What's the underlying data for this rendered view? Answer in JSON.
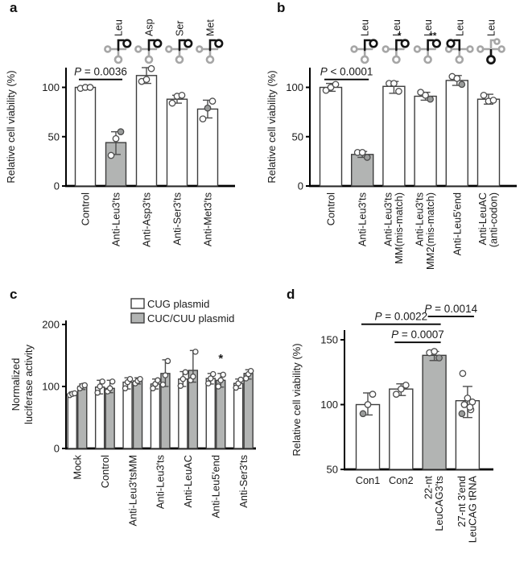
{
  "figure": {
    "panels": [
      {
        "letter": "a"
      },
      {
        "letter": "b"
      },
      {
        "letter": "c"
      },
      {
        "letter": "d"
      }
    ]
  },
  "colors": {
    "bar_white": "#ffffff",
    "bar_gray": "#b2b4b3",
    "bar_outline": "#3d3d3d",
    "error_stroke": "#4d4d4d",
    "icon_gray": "#a6a6a6",
    "axis": "#000000",
    "text": "#1a1a1a"
  },
  "chart_data": [
    {
      "panel": "a",
      "type": "bar",
      "ylabel": "Relative cell viability (%)",
      "ymin": 0,
      "ymax": 120,
      "yticks": [
        0,
        50,
        100
      ],
      "grid": false,
      "rotate_labels": true,
      "categories": [
        [
          "Control"
        ],
        [
          "Anti-Leu3′ts"
        ],
        [
          "Anti-Asp3′ts"
        ],
        [
          "Anti-Ser3′ts"
        ],
        [
          "Anti-Met3′ts"
        ]
      ],
      "series": [
        {
          "name": "Relative cell viability",
          "values": [
            100,
            44,
            112,
            88,
            78
          ],
          "fills": [
            "white",
            "gray",
            "white",
            "white",
            "white"
          ],
          "errors": [
            [
              99,
              101
            ],
            [
              32,
              55
            ],
            [
              104,
              120
            ],
            [
              84,
              92
            ],
            [
              69,
              87
            ]
          ],
          "points": [
            [
              99,
              100,
              100
            ],
            [
              31,
              48,
              {
                "v": 55,
                "f": 1
              }
            ],
            [
              106,
              108,
              119
            ],
            [
              84,
              91,
              92
            ],
            [
              68,
              {
                "v": 79,
                "f": 1
              },
              86
            ]
          ]
        }
      ],
      "sig": [
        {
          "text": "P = 0.0036",
          "from": 0,
          "to": 1,
          "y": 108
        }
      ],
      "icons": [
        {
          "label": "Leu",
          "variant": "3end",
          "cat": 1
        },
        {
          "label": "Asp",
          "variant": "3end",
          "cat": 2
        },
        {
          "label": "Ser",
          "variant": "3end",
          "cat": 3
        },
        {
          "label": "Met",
          "variant": "3end",
          "cat": 4
        }
      ]
    },
    {
      "panel": "b",
      "type": "bar",
      "ylabel": "Relative cell viability (%)",
      "ymin": 0,
      "ymax": 120,
      "yticks": [
        0,
        50,
        100
      ],
      "grid": false,
      "rotate_labels": true,
      "categories": [
        [
          "Control"
        ],
        [
          "Anti-Leu3′ts"
        ],
        [
          "Anti-Leu3′ts",
          "MM(mis-match)"
        ],
        [
          "Anti-Leu3′ts",
          "MM2(mis-match)"
        ],
        [
          "Anti-Leu5′end"
        ],
        [
          "Anti-LeuAC",
          "(anti-codon)"
        ]
      ],
      "series": [
        {
          "name": "Relative cell viability",
          "values": [
            100,
            32,
            101,
            91,
            107,
            88
          ],
          "fills": [
            "white",
            "gray",
            "white",
            "white",
            "white",
            "white"
          ],
          "errors": [
            [
              96,
              104
            ],
            [
              29,
              35
            ],
            [
              94,
              106
            ],
            [
              87,
              95
            ],
            [
              102,
              112
            ],
            [
              83,
              93
            ]
          ],
          "points": [
            [
              97,
              100,
              103
            ],
            [
              34,
              34,
              {
                "v": 29,
                "f": 1
              }
            ],
            [
              104,
              104,
              96
            ],
            [
              95,
              92,
              {
                "v": 88,
                "f": 1
              }
            ],
            [
              111,
              109,
              {
                "v": 103,
                "f": 1
              }
            ],
            [
              92,
              86,
              87
            ]
          ]
        }
      ],
      "sig": [
        {
          "text": "P < 0.0001",
          "from": 0,
          "to": 1,
          "y": 108
        }
      ],
      "icons": [
        {
          "label": "Leu",
          "variant": "3end",
          "cat": 1
        },
        {
          "label": "Leu",
          "variant": "3end-star",
          "cat": 2
        },
        {
          "label": "Leu",
          "variant": "3end-2star",
          "cat": 3
        },
        {
          "label": "Leu",
          "variant": "5end",
          "cat": 4
        },
        {
          "label": "Leu",
          "variant": "ac",
          "cat": 5
        }
      ]
    },
    {
      "panel": "c",
      "type": "bar",
      "ylabel": [
        "Normalized",
        "luciferase activity"
      ],
      "ymin": 0,
      "ymax": 206,
      "yticks": [
        0,
        100,
        200
      ],
      "grid": false,
      "rotate_labels": true,
      "categories": [
        [
          "Mock"
        ],
        [
          "Control"
        ],
        [
          "Anti-Leu3′tsMM"
        ],
        [
          "Anti-Leu3′ts"
        ],
        [
          "Anti-LeuAC"
        ],
        [
          "Anti-Leu5′end"
        ],
        [
          "Anti-Ser3′ts"
        ]
      ],
      "legend": {
        "entries": [
          {
            "label": "CUG plasmid",
            "fill": "white"
          },
          {
            "label": "CUC/CUU plasmid",
            "fill": "gray"
          }
        ]
      },
      "series": [
        {
          "name": "CUG plasmid",
          "fill": "white",
          "values": [
            88,
            99,
            107,
            104,
            112,
            113,
            105
          ],
          "errors": [
            [
              86,
              91
            ],
            [
              88,
              110
            ],
            [
              96,
              114
            ],
            [
              96,
              112
            ],
            [
              100,
              124
            ],
            [
              104,
              121
            ],
            [
              97,
              112
            ]
          ],
          "points": [
            [
              86,
              88,
              89
            ],
            [
              90,
              100,
              108
            ],
            [
              97,
              107,
              112
            ],
            [
              97,
              104,
              110
            ],
            [
              101,
              112,
              123
            ],
            [
              105,
              113,
              120
            ],
            [
              98,
              105,
              111
            ]
          ]
        },
        {
          "name": "CUC/CUU plasmid",
          "fill": "gray",
          "values": [
            100,
            97,
            109,
            121,
            126,
            110,
            121
          ],
          "errors": [
            [
              95,
              104
            ],
            [
              90,
              110
            ],
            [
              104,
              114
            ],
            [
              100,
              143
            ],
            [
              107,
              158
            ],
            [
              99,
              121
            ],
            [
              112,
              127
            ]
          ],
          "points": [
            [
              97,
              101,
              102
            ],
            [
              92,
              97,
              108
            ],
            [
              105,
              109,
              112
            ],
            [
              103,
              118,
              141
            ],
            [
              110,
              116,
              156
            ],
            [
              100,
              110,
              119
            ],
            [
              113,
              120,
              125
            ]
          ]
        }
      ],
      "annotations": [
        {
          "text": "*",
          "cat": 5,
          "series": 1,
          "y": 139
        }
      ]
    },
    {
      "panel": "d",
      "type": "bar",
      "ylabel": "Relative cell viability (%)",
      "ymin": 50,
      "ymax": 152,
      "yticks": [
        50,
        100,
        150
      ],
      "grid": false,
      "rotate_labels": [
        false,
        false,
        true,
        true
      ],
      "categories": [
        [
          "Con1"
        ],
        [
          "Con2"
        ],
        [
          "22-nt",
          "LeuCAG3′ts"
        ],
        [
          "27-nt 3′end",
          "LeuCAG tRNA"
        ]
      ],
      "series": [
        {
          "name": "Relative cell viability",
          "values": [
            100,
            112,
            138,
            103
          ],
          "fills": [
            "white",
            "white",
            "gray",
            "white"
          ],
          "errors": [
            [
              92,
              109
            ],
            [
              107,
              116
            ],
            [
              134,
              141
            ],
            [
              90,
              114
            ]
          ],
          "points": [
            [
              {
                "v": 93,
                "f": 1
              },
              100,
              108
            ],
            [
              108,
              112,
              115
            ],
            [
              140,
              141,
              {
                "v": 136,
                "f": 1
              }
            ],
            [
              124,
              105,
              102,
              100,
              96,
              {
                "v": 93,
                "f": 1
              },
              98
            ]
          ]
        }
      ],
      "sig": [
        {
          "text": "P = 0.0022",
          "from": 0,
          "to": 2,
          "y": 162
        },
        {
          "text": "P = 0.0007",
          "from": 1,
          "to": 2,
          "y": 148
        },
        {
          "text": "P = 0.0014",
          "from": 2,
          "to": 3,
          "y": 168
        }
      ]
    }
  ]
}
